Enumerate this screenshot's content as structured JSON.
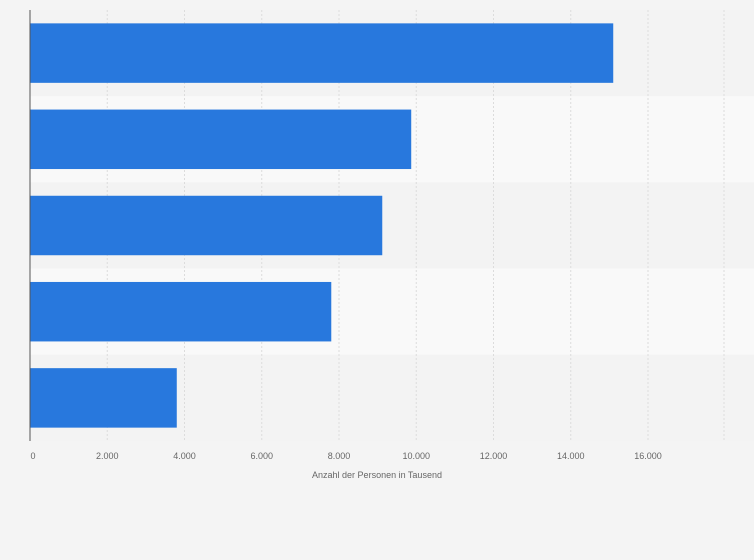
{
  "chart_data": {
    "type": "bar",
    "orientation": "horizontal",
    "title": "",
    "xlabel": "Anzahl der Personen in Tausend",
    "ylabel": "",
    "categories": [
      "",
      "",
      "",
      "",
      ""
    ],
    "values": [
      15100,
      9870,
      9120,
      7800,
      3800
    ],
    "xlim": [
      0,
      18000
    ],
    "xticks": [
      0,
      2000,
      4000,
      6000,
      8000,
      10000,
      12000,
      14000,
      16000
    ],
    "xtick_labels": [
      "0",
      "2.000",
      "4.000",
      "6.000",
      "8.000",
      "10.000",
      "12.000",
      "14.000",
      "16.000"
    ],
    "grid": true,
    "legend": "none"
  },
  "colors": {
    "bar": "#2878dd",
    "band_a": "#f3f3f3",
    "band_b": "#f9f9f9",
    "grid": "#dcdcdc",
    "axis": "#555555",
    "text": "#666666"
  }
}
